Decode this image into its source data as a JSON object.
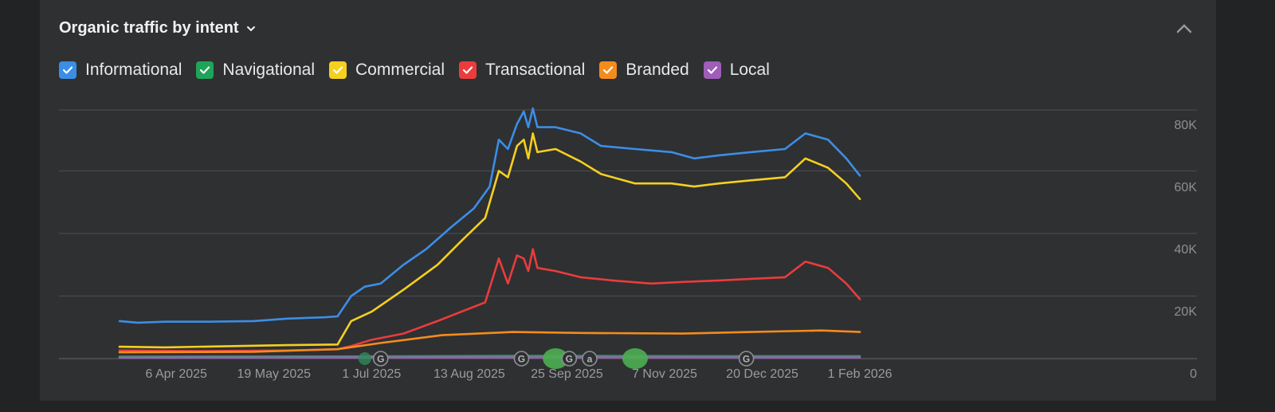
{
  "header": {
    "title": "Organic traffic by intent"
  },
  "legend": [
    {
      "label": "Informational",
      "color": "#3b8ee6"
    },
    {
      "label": "Navigational",
      "color": "#1fa45a"
    },
    {
      "label": "Commercial",
      "color": "#f5d020"
    },
    {
      "label": "Transactional",
      "color": "#ea3c3c"
    },
    {
      "label": "Branded",
      "color": "#f48c1c"
    },
    {
      "label": "Local",
      "color": "#9e5db7"
    }
  ],
  "chart_data": {
    "type": "line",
    "x_tick_labels": [
      "6 Apr 2025",
      "19 May 2025",
      "1 Jul 2025",
      "13 Aug 2025",
      "25 Sep 2025",
      "7 Nov 2025",
      "20 Dec 2025",
      "1 Feb 2026"
    ],
    "y_tick_labels": [
      "0",
      "20K",
      "40K",
      "60K",
      "80K"
    ],
    "ylim": [
      0,
      80000
    ],
    "x_range": [
      "2025-03-12",
      "2026-02-01"
    ],
    "grid": true,
    "series": [
      {
        "name": "Informational",
        "color": "#3b8ee6",
        "points": [
          [
            "2025-03-12",
            12000
          ],
          [
            "2025-03-20",
            11500
          ],
          [
            "2025-04-01",
            11800
          ],
          [
            "2025-04-20",
            11800
          ],
          [
            "2025-05-10",
            12000
          ],
          [
            "2025-05-25",
            12800
          ],
          [
            "2025-06-10",
            13200
          ],
          [
            "2025-06-16",
            13500
          ],
          [
            "2025-06-22",
            20000
          ],
          [
            "2025-06-28",
            23000
          ],
          [
            "2025-07-05",
            24000
          ],
          [
            "2025-07-15",
            30000
          ],
          [
            "2025-07-25",
            35000
          ],
          [
            "2025-08-05",
            42000
          ],
          [
            "2025-08-15",
            48000
          ],
          [
            "2025-08-22",
            55000
          ],
          [
            "2025-08-26",
            70000
          ],
          [
            "2025-08-30",
            67000
          ],
          [
            "2025-09-03",
            75000
          ],
          [
            "2025-09-06",
            79000
          ],
          [
            "2025-09-08",
            74000
          ],
          [
            "2025-09-10",
            80000
          ],
          [
            "2025-09-12",
            74000
          ],
          [
            "2025-09-20",
            74000
          ],
          [
            "2025-10-01",
            72000
          ],
          [
            "2025-10-10",
            68000
          ],
          [
            "2025-10-25",
            67000
          ],
          [
            "2025-11-10",
            66000
          ],
          [
            "2025-11-20",
            64000
          ],
          [
            "2025-12-01",
            65000
          ],
          [
            "2025-12-15",
            66000
          ],
          [
            "2025-12-30",
            67000
          ],
          [
            "2026-01-08",
            72000
          ],
          [
            "2026-01-18",
            70000
          ],
          [
            "2026-01-26",
            64000
          ],
          [
            "2026-02-01",
            58500
          ]
        ]
      },
      {
        "name": "Commercial",
        "color": "#f5d020",
        "points": [
          [
            "2025-03-12",
            3800
          ],
          [
            "2025-04-01",
            3600
          ],
          [
            "2025-05-01",
            4000
          ],
          [
            "2025-05-25",
            4300
          ],
          [
            "2025-06-16",
            4500
          ],
          [
            "2025-06-22",
            12000
          ],
          [
            "2025-07-01",
            15000
          ],
          [
            "2025-07-15",
            22000
          ],
          [
            "2025-07-30",
            30000
          ],
          [
            "2025-08-10",
            38000
          ],
          [
            "2025-08-20",
            45000
          ],
          [
            "2025-08-26",
            60000
          ],
          [
            "2025-08-30",
            58000
          ],
          [
            "2025-09-03",
            68000
          ],
          [
            "2025-09-06",
            70000
          ],
          [
            "2025-09-08",
            64000
          ],
          [
            "2025-09-10",
            72000
          ],
          [
            "2025-09-12",
            66000
          ],
          [
            "2025-09-20",
            67000
          ],
          [
            "2025-10-01",
            63000
          ],
          [
            "2025-10-10",
            59000
          ],
          [
            "2025-10-25",
            56000
          ],
          [
            "2025-11-10",
            56000
          ],
          [
            "2025-11-20",
            55000
          ],
          [
            "2025-12-01",
            56000
          ],
          [
            "2025-12-15",
            57000
          ],
          [
            "2025-12-30",
            58000
          ],
          [
            "2026-01-08",
            64000
          ],
          [
            "2026-01-18",
            61000
          ],
          [
            "2026-01-26",
            56000
          ],
          [
            "2026-02-01",
            51000
          ]
        ]
      },
      {
        "name": "Transactional",
        "color": "#ea3c3c",
        "points": [
          [
            "2025-03-12",
            2600
          ],
          [
            "2025-04-15",
            2400
          ],
          [
            "2025-05-25",
            2600
          ],
          [
            "2025-06-16",
            3000
          ],
          [
            "2025-06-22",
            4000
          ],
          [
            "2025-07-01",
            6000
          ],
          [
            "2025-07-15",
            8000
          ],
          [
            "2025-07-30",
            12000
          ],
          [
            "2025-08-20",
            18000
          ],
          [
            "2025-08-26",
            32000
          ],
          [
            "2025-08-30",
            24000
          ],
          [
            "2025-09-03",
            33000
          ],
          [
            "2025-09-06",
            32000
          ],
          [
            "2025-09-08",
            28000
          ],
          [
            "2025-09-10",
            35000
          ],
          [
            "2025-09-12",
            29000
          ],
          [
            "2025-09-20",
            28000
          ],
          [
            "2025-10-01",
            26000
          ],
          [
            "2025-10-15",
            25000
          ],
          [
            "2025-11-01",
            24000
          ],
          [
            "2025-11-15",
            24500
          ],
          [
            "2025-12-01",
            25000
          ],
          [
            "2025-12-15",
            25500
          ],
          [
            "2025-12-30",
            26000
          ],
          [
            "2026-01-08",
            31000
          ],
          [
            "2026-01-18",
            29000
          ],
          [
            "2026-01-26",
            24000
          ],
          [
            "2026-02-01",
            19000
          ]
        ]
      },
      {
        "name": "Branded",
        "color": "#f48c1c",
        "points": [
          [
            "2025-03-12",
            2000
          ],
          [
            "2025-05-10",
            2200
          ],
          [
            "2025-06-16",
            3000
          ],
          [
            "2025-07-05",
            5000
          ],
          [
            "2025-08-01",
            7500
          ],
          [
            "2025-09-01",
            8500
          ],
          [
            "2025-10-01",
            8200
          ],
          [
            "2025-11-15",
            8000
          ],
          [
            "2025-12-15",
            8500
          ],
          [
            "2026-01-15",
            9000
          ],
          [
            "2026-02-01",
            8500
          ]
        ]
      },
      {
        "name": "Navigational",
        "color": "#1fa45a",
        "points": [
          [
            "2025-03-12",
            600
          ],
          [
            "2025-06-16",
            700
          ],
          [
            "2025-09-01",
            900
          ],
          [
            "2025-12-01",
            800
          ],
          [
            "2026-02-01",
            800
          ]
        ]
      },
      {
        "name": "Local",
        "color": "#9e5db7",
        "points": [
          [
            "2025-03-12",
            300
          ],
          [
            "2025-06-16",
            350
          ],
          [
            "2025-09-01",
            400
          ],
          [
            "2025-12-01",
            380
          ],
          [
            "2026-02-01",
            360
          ]
        ]
      }
    ],
    "event_markers": [
      {
        "date": "2025-06-28",
        "icon": "green-dot-marker",
        "color": "#2e8b57"
      },
      {
        "date": "2025-07-05",
        "icon": "google-update-icon",
        "letter": "G"
      },
      {
        "date": "2025-09-05",
        "icon": "google-update-icon",
        "letter": "G"
      },
      {
        "date": "2025-09-20",
        "icon": "green-blob-marker",
        "color": "#4caf50"
      },
      {
        "date": "2025-09-26",
        "icon": "google-update-icon",
        "letter": "G"
      },
      {
        "date": "2025-10-05",
        "icon": "announcement-icon",
        "letter": "a"
      },
      {
        "date": "2025-10-25",
        "icon": "green-blob-marker",
        "color": "#4caf50"
      },
      {
        "date": "2025-12-13",
        "icon": "google-update-icon",
        "letter": "G"
      }
    ]
  }
}
